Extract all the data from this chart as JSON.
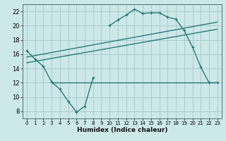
{
  "xlabel": "Humidex (Indice chaleur)",
  "background_color": "#cce8e8",
  "grid_color": "#aacccc",
  "line_color": "#1a7070",
  "xlim": [
    -0.5,
    23.5
  ],
  "ylim": [
    7,
    23
  ],
  "xticks": [
    0,
    1,
    2,
    3,
    4,
    5,
    6,
    7,
    8,
    9,
    10,
    11,
    12,
    13,
    14,
    15,
    16,
    17,
    18,
    19,
    20,
    21,
    22,
    23
  ],
  "yticks": [
    8,
    10,
    12,
    14,
    16,
    18,
    20,
    22
  ],
  "curve1_x": [
    0,
    1,
    2,
    3,
    4,
    5,
    6,
    7,
    8,
    9,
    10,
    11,
    12,
    13,
    14,
    15,
    16,
    17,
    18,
    19,
    20,
    21,
    22,
    23
  ],
  "curve1_y": [
    16.5,
    15.3,
    14.3,
    12.1,
    11.1,
    9.4,
    7.9,
    8.7,
    12.7,
    null,
    20.0,
    20.8,
    21.5,
    22.3,
    21.7,
    21.8,
    21.8,
    21.2,
    20.9,
    19.3,
    17.0,
    14.2,
    12.0,
    12.0
  ],
  "line1_x": [
    0,
    23
  ],
  "line1_y": [
    15.6,
    20.5
  ],
  "line2_x": [
    0,
    23
  ],
  "line2_y": [
    14.8,
    19.5
  ],
  "hline_y": 12.0,
  "hline_x_start": 3,
  "hline_x_end": 23
}
